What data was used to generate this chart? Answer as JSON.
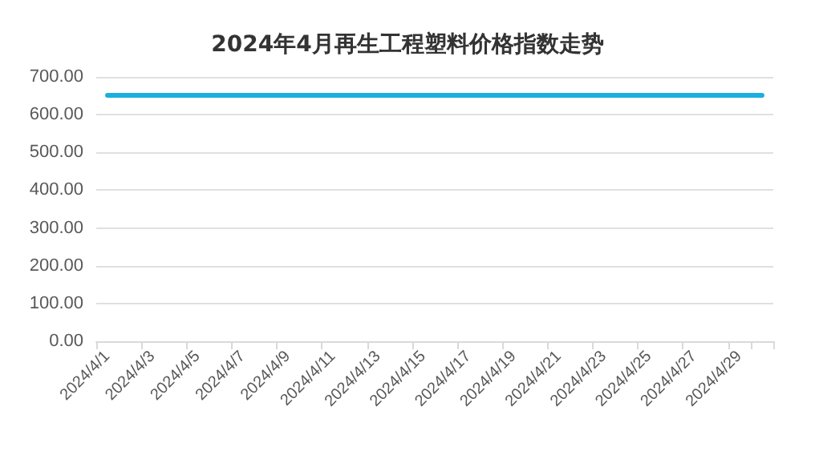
{
  "chart_data": {
    "type": "line",
    "title": "2024年4月再生工程塑料价格指数走势",
    "categories": [
      "2024/4/1",
      null,
      "2024/4/3",
      null,
      "2024/4/5",
      null,
      "2024/4/7",
      null,
      "2024/4/9",
      null,
      "2024/4/11",
      null,
      "2024/4/13",
      null,
      "2024/4/15",
      null,
      "2024/4/17",
      null,
      "2024/4/19",
      null,
      "2024/4/21",
      null,
      "2024/4/23",
      null,
      "2024/4/25",
      null,
      "2024/4/27",
      null,
      "2024/4/29",
      null
    ],
    "values": [
      651,
      651,
      651,
      651,
      651,
      651,
      651,
      651,
      651,
      651,
      651,
      651,
      651,
      651,
      651,
      651,
      651,
      651,
      651,
      651,
      651,
      651,
      651,
      651,
      651,
      651,
      651,
      651,
      651,
      651
    ],
    "color": "#1aafdf",
    "ylim": [
      0,
      700
    ],
    "yticks": [
      {
        "value": 0,
        "label": "0.00"
      },
      {
        "value": 100,
        "label": "100.00"
      },
      {
        "value": 200,
        "label": "200.00"
      },
      {
        "value": 300,
        "label": "300.00"
      },
      {
        "value": 400,
        "label": "400.00"
      },
      {
        "value": 500,
        "label": "500.00"
      },
      {
        "value": 600,
        "label": "600.00"
      },
      {
        "value": 700,
        "label": "700.00"
      }
    ],
    "grid": "y",
    "marker": "none",
    "line_style": "solid"
  }
}
